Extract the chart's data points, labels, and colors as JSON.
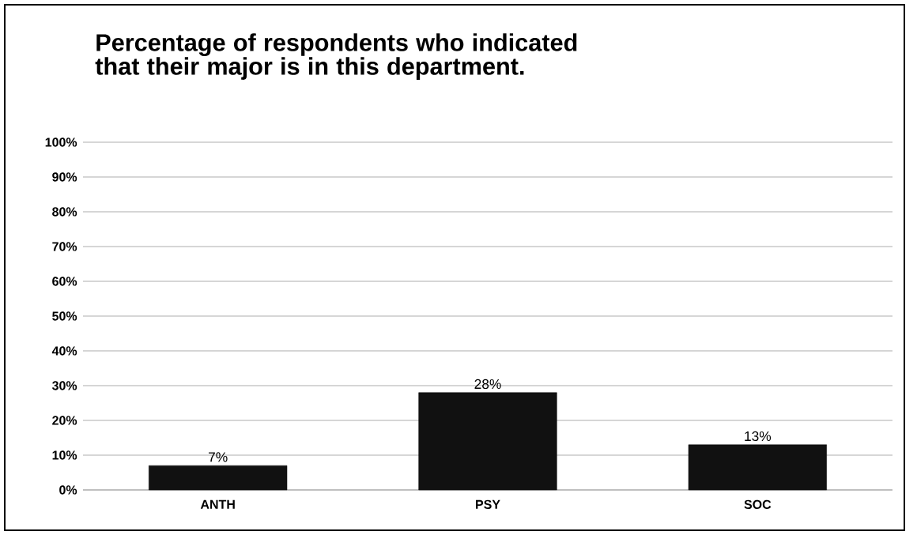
{
  "chart_data": {
    "type": "bar",
    "title": "Percentage of respondents who indicated that their major is in this department.",
    "categories": [
      "ANTH",
      "PSY",
      "SOC"
    ],
    "values": [
      7,
      28,
      13
    ],
    "value_labels": [
      "7%",
      "28%",
      "13%"
    ],
    "color": "#111111",
    "ylim": [
      0,
      100
    ],
    "yticks": [
      {
        "value": 0,
        "label": "0%"
      },
      {
        "value": 10,
        "label": "10%"
      },
      {
        "value": 20,
        "label": "20%"
      },
      {
        "value": 30,
        "label": "30%"
      },
      {
        "value": 40,
        "label": "40%"
      },
      {
        "value": 50,
        "label": "50%"
      },
      {
        "value": 60,
        "label": "60%"
      },
      {
        "value": 70,
        "label": "70%"
      },
      {
        "value": 80,
        "label": "80%"
      },
      {
        "value": 90,
        "label": "90%"
      },
      {
        "value": 100,
        "label": "100%"
      }
    ],
    "grid": "y"
  }
}
